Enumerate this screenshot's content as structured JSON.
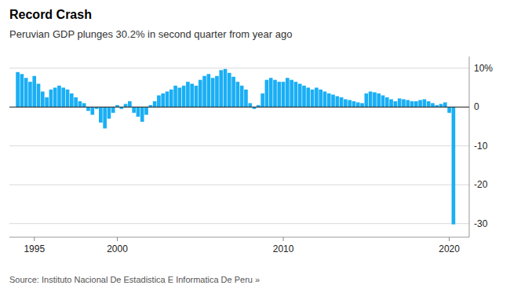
{
  "chart_data": {
    "type": "bar",
    "title": "Record Crash",
    "subtitle": "Peruvian GDP plunges 30.2% in second quarter from year ago",
    "source": "Source: Instituto Nacional De Estadistica E Informatica De Peru »",
    "x": [
      1994,
      1994.25,
      1994.5,
      1994.75,
      1995,
      1995.25,
      1995.5,
      1995.75,
      1996,
      1996.25,
      1996.5,
      1996.75,
      1997,
      1997.25,
      1997.5,
      1997.75,
      1998,
      1998.25,
      1998.5,
      1998.75,
      1999,
      1999.25,
      1999.5,
      1999.75,
      2000,
      2000.25,
      2000.5,
      2000.75,
      2001,
      2001.25,
      2001.5,
      2001.75,
      2002,
      2002.25,
      2002.5,
      2002.75,
      2003,
      2003.25,
      2003.5,
      2003.75,
      2004,
      2004.25,
      2004.5,
      2004.75,
      2005,
      2005.25,
      2005.5,
      2005.75,
      2006,
      2006.25,
      2006.5,
      2006.75,
      2007,
      2007.25,
      2007.5,
      2007.75,
      2008,
      2008.25,
      2008.5,
      2008.75,
      2009,
      2009.25,
      2009.5,
      2009.75,
      2010,
      2010.25,
      2010.5,
      2010.75,
      2011,
      2011.25,
      2011.5,
      2011.75,
      2012,
      2012.25,
      2012.5,
      2012.75,
      2013,
      2013.25,
      2013.5,
      2013.75,
      2014,
      2014.25,
      2014.5,
      2014.75,
      2015,
      2015.25,
      2015.5,
      2015.75,
      2016,
      2016.25,
      2016.5,
      2016.75,
      2017,
      2017.25,
      2017.5,
      2017.75,
      2018,
      2018.25,
      2018.5,
      2018.75,
      2019,
      2019.25,
      2019.5,
      2019.75,
      2020,
      2020.25
    ],
    "values": [
      9.0,
      8.5,
      7.5,
      6.5,
      8.0,
      6.0,
      4.0,
      2.5,
      4.5,
      5.0,
      5.5,
      5.0,
      4.5,
      3.5,
      2.5,
      1.5,
      1.0,
      -1.0,
      -2.0,
      -0.5,
      -4.0,
      -5.5,
      -3.0,
      -1.5,
      0.5,
      -0.5,
      0.8,
      1.5,
      -1.5,
      -2.5,
      -3.8,
      -2.0,
      0.5,
      1.5,
      3.0,
      3.5,
      4.0,
      4.5,
      5.5,
      5.0,
      5.5,
      6.5,
      6.0,
      5.5,
      7.0,
      8.0,
      8.5,
      7.5,
      8.0,
      9.5,
      9.8,
      8.8,
      7.8,
      6.5,
      5.5,
      4.5,
      1.0,
      -0.5,
      0.5,
      3.5,
      7.0,
      7.5,
      7.0,
      6.5,
      6.5,
      7.5,
      7.0,
      6.5,
      6.0,
      5.5,
      5.0,
      4.5,
      5.0,
      4.5,
      4.0,
      3.5,
      3.2,
      2.8,
      2.5,
      2.0,
      1.8,
      1.5,
      1.2,
      1.0,
      3.5,
      4.0,
      3.8,
      3.5,
      3.0,
      2.5,
      2.0,
      1.5,
      2.2,
      2.0,
      1.8,
      1.5,
      1.5,
      1.8,
      2.0,
      1.5,
      1.0,
      0.5,
      0.8,
      1.2,
      -1.5,
      -30.2
    ],
    "colors": [
      "#1aaff5",
      "#1aaff5",
      "#1aaff5",
      "#1aaff5",
      "#1aaff5",
      "#1aaff5",
      "#1aaff5",
      "#1aaff5",
      "#1aaff5",
      "#1aaff5",
      "#1aaff5",
      "#1aaff5",
      "#1aaff5",
      "#1aaff5",
      "#1aaff5",
      "#1aaff5",
      "#1aaff5",
      "#1aaff5",
      "#1aaff5",
      "#1aaff5",
      "#1aaff5",
      "#1aaff5",
      "#1aaff5",
      "#1aaff5",
      "#1aaff5",
      "#1aaff5",
      "#1aaff5",
      "#1aaff5",
      "#1aaff5",
      "#1aaff5",
      "#1aaff5",
      "#1aaff5",
      "#1aaff5",
      "#1aaff5",
      "#1aaff5",
      "#1aaff5",
      "#1aaff5",
      "#1aaff5",
      "#1aaff5",
      "#1aaff5",
      "#1aaff5",
      "#1aaff5",
      "#1aaff5",
      "#1aaff5",
      "#1aaff5",
      "#1aaff5",
      "#1aaff5",
      "#1aaff5",
      "#1aaff5",
      "#1aaff5",
      "#1aaff5",
      "#1aaff5",
      "#1aaff5",
      "#1aaff5",
      "#1aaff5",
      "#1aaff5",
      "#1aaff5",
      "#1aaff5",
      "#1aaff5",
      "#1aaff5",
      "#1aaff5",
      "#1aaff5",
      "#1aaff5",
      "#1aaff5",
      "#1aaff5",
      "#1aaff5",
      "#1aaff5",
      "#1aaff5",
      "#1aaff5",
      "#1aaff5",
      "#1aaff5",
      "#1aaff5",
      "#1aaff5",
      "#1aaff5",
      "#1aaff5",
      "#1aaff5",
      "#1aaff5",
      "#1aaff5",
      "#1aaff5",
      "#1aaff5",
      "#1aaff5",
      "#1aaff5",
      "#1aaff5",
      "#1aaff5",
      "#1aaff5",
      "#1aaff5",
      "#1aaff5",
      "#1aaff5",
      "#1aaff5",
      "#1aaff5",
      "#1aaff5",
      "#1aaff5",
      "#1aaff5",
      "#1aaff5",
      "#1aaff5",
      "#1aaff5",
      "#1aaff5",
      "#1aaff5",
      "#1aaff5",
      "#1aaff5",
      "#1aaff5",
      "#1aaff5",
      "#1aaff5",
      "#1aaff5",
      "#1aaff5",
      "#1aaff5",
      "#1aaff5",
      "#1aaff5",
      "#1aaff5",
      "#e8000d"
    ],
    "xlim": [
      1993.5,
      2021.2
    ],
    "xticks": [
      1995,
      2000,
      2010,
      2020
    ],
    "ylim": [
      -33.5,
      13
    ],
    "yticks": [
      -30,
      -20,
      -10,
      0,
      {
        "value": 10,
        "label": "10%"
      }
    ],
    "grid": true
  }
}
